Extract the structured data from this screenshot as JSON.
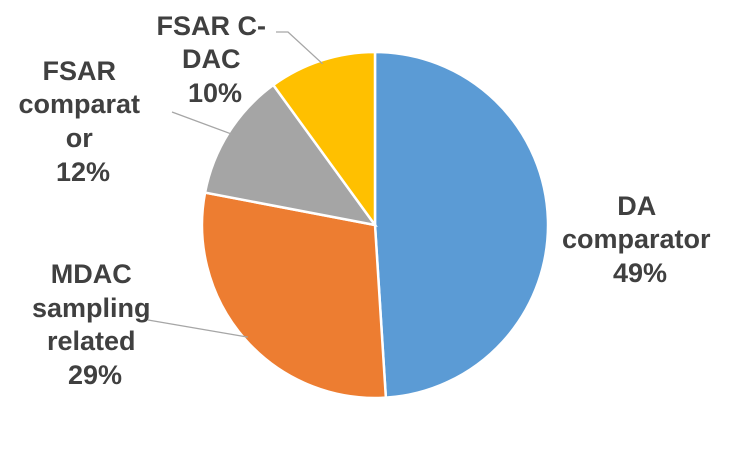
{
  "chart_data": {
    "type": "pie",
    "slices": [
      {
        "label": "DA comparator",
        "value": 49,
        "value_label": "49%",
        "color": "#5b9bd5",
        "label_lines": [
          "DA",
          "comparator",
          "49%"
        ]
      },
      {
        "label": "MDAC sampling related",
        "value": 29,
        "value_label": "29%",
        "color": "#ed7d31",
        "label_lines": [
          "MDAC",
          "sampling",
          "related",
          "29%"
        ]
      },
      {
        "label": "FSAR comparator",
        "value": 12,
        "value_label": "12%",
        "color": "#a5a5a5",
        "label_lines": [
          "FSAR",
          "comparat",
          "or",
          "12%"
        ]
      },
      {
        "label": "FSAR C-DAC",
        "value": 10,
        "value_label": "10%",
        "color": "#ffc000",
        "label_lines": [
          "FSAR C-",
          "DAC",
          "10%"
        ]
      }
    ],
    "start_angle_deg": 0,
    "direction": "clockwise",
    "legend": "none"
  }
}
